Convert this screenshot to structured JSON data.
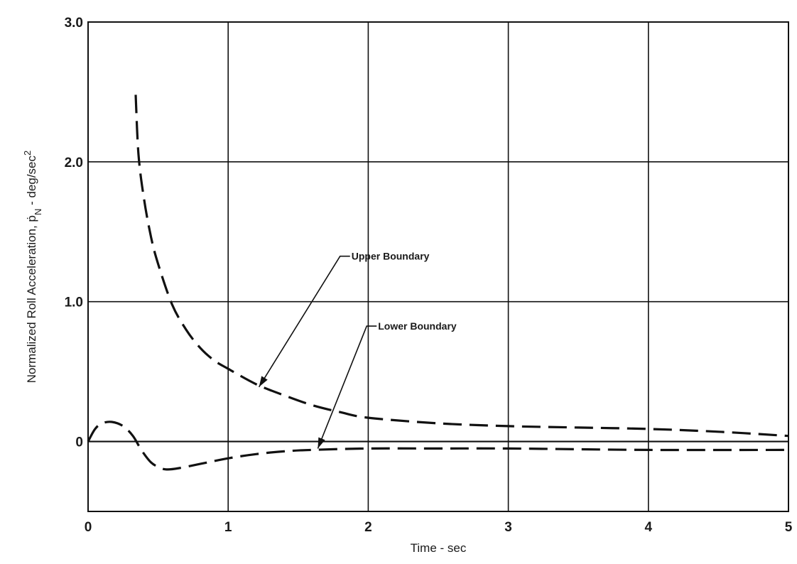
{
  "chart_data": {
    "type": "line",
    "title": "",
    "xlabel": "Time - sec",
    "ylabel_parts": {
      "prefix": "Normalized Roll Acceleration, ",
      "symbol": "ṗ",
      "subscript": "N",
      "unit": " - deg/sec",
      "superscript": "2"
    },
    "xlim": [
      0,
      5
    ],
    "ylim": [
      -0.5,
      3.0
    ],
    "x_ticks": [
      {
        "value": 0,
        "label": "0"
      },
      {
        "value": 1,
        "label": "1"
      },
      {
        "value": 2,
        "label": "2"
      },
      {
        "value": 3,
        "label": "3"
      },
      {
        "value": 4,
        "label": "4"
      },
      {
        "value": 5,
        "label": "5"
      }
    ],
    "y_ticks": [
      {
        "value": 0,
        "label": "0"
      },
      {
        "value": 1,
        "label": "1.0"
      },
      {
        "value": 2,
        "label": "2.0"
      },
      {
        "value": 3,
        "label": "3.0"
      }
    ],
    "grid": true,
    "reference_line_y": 0,
    "series": [
      {
        "x": [
          0.34,
          0.36,
          0.4,
          0.45,
          0.5,
          0.6,
          0.7,
          0.8,
          0.9,
          1.0,
          1.2,
          1.4,
          1.6,
          1.8,
          2.0,
          2.5,
          3.0,
          3.5,
          4.0,
          4.5,
          5.0
        ],
        "y": [
          2.48,
          2.05,
          1.73,
          1.46,
          1.27,
          0.98,
          0.8,
          0.67,
          0.58,
          0.52,
          0.41,
          0.33,
          0.26,
          0.21,
          0.17,
          0.13,
          0.11,
          0.1,
          0.09,
          0.07,
          0.04
        ]
      },
      {
        "x": [
          0.0,
          0.05,
          0.1,
          0.17,
          0.25,
          0.32,
          0.38,
          0.45,
          0.52,
          0.57,
          0.65,
          0.8,
          1.0,
          1.2,
          1.4,
          1.6,
          2.0,
          2.5,
          3.0,
          4.0,
          5.0
        ],
        "y": [
          0.0,
          0.09,
          0.13,
          0.14,
          0.11,
          0.04,
          -0.06,
          -0.15,
          -0.19,
          -0.2,
          -0.19,
          -0.16,
          -0.12,
          -0.09,
          -0.07,
          -0.06,
          -0.05,
          -0.05,
          -0.05,
          -0.06,
          -0.06
        ]
      }
    ],
    "annotations": [
      {
        "text": "Upper Boundary",
        "label_x": 1.87,
        "label_y": 1.3,
        "arrow_x": 1.22,
        "arrow_y": 0.39
      },
      {
        "text": "Lower Boundary",
        "label_x": 2.06,
        "label_y": 0.8,
        "arrow_x": 1.64,
        "arrow_y": -0.05
      }
    ]
  }
}
